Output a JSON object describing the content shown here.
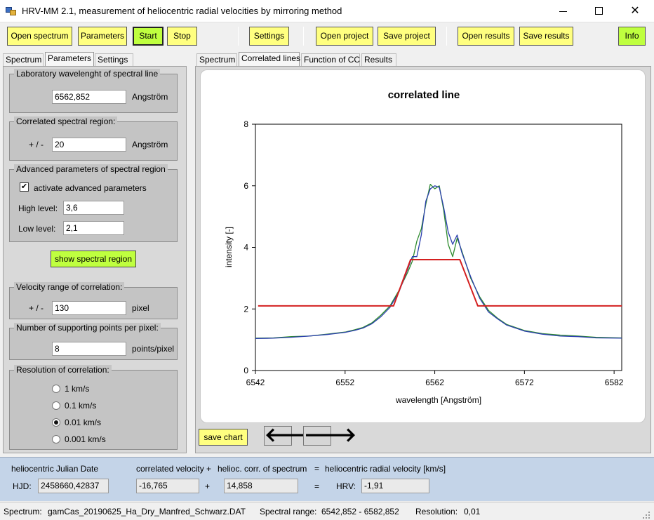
{
  "window": {
    "title": "HRV-MM 2.1,   measurement of heliocentric radial velocities by mirroring method",
    "min_glyph": "",
    "close_glyph": "✕"
  },
  "toolbar": {
    "open_spectrum": "Open spectrum",
    "parameters": "Parameters",
    "start": "Start",
    "stop": "Stop",
    "settings": "Settings",
    "open_project": "Open project",
    "save_project": "Save project",
    "open_results": "Open results",
    "save_results": "Save results",
    "info": "Info"
  },
  "left_tabs": [
    "Spectrum",
    "Parameters",
    "Settings"
  ],
  "right_tabs": [
    "Spectrum",
    "Correlated lines",
    "Function of CC",
    "Results"
  ],
  "parameters": {
    "lab_wavelength": {
      "title": "Laboratory wavelenght of spectral line",
      "value": "6562,852",
      "unit": "Angström"
    },
    "correlated_region": {
      "title": "Correlated spectral region:",
      "prefix": "+ / -",
      "value": "20",
      "unit": "Angström"
    },
    "advanced": {
      "title": "Advanced parameters of spectral region",
      "checkbox_label": "activate advanced parameters",
      "checked_glyph": "✔",
      "high_label": "High level:",
      "high_value": "3,6",
      "low_label": "Low level:",
      "low_value": "2,1"
    },
    "show_region_button": "show spectral region",
    "velocity_range": {
      "title": "Velocity range of correlation:",
      "prefix": "+ / -",
      "value": "130",
      "unit": "pixel"
    },
    "supporting_points": {
      "title": "Number of supporting points per pixel:",
      "value": "8",
      "unit": "points/pixel"
    },
    "resolution": {
      "title": "Resolution of correlation:",
      "options": [
        "1 km/s",
        "0.1 km/s",
        "0.01 km/s",
        "0.001 km/s"
      ],
      "selected_index": 2
    }
  },
  "chart_actions": {
    "save_chart": "save chart",
    "back_arrow": "🡐",
    "forward_arrow": "🡒"
  },
  "results": {
    "hjd_header": "heliocentric Julian Date",
    "velocity_header": "correlated velocity",
    "plus1": "+",
    "helio_header": "helioc. corr. of spectrum",
    "equals1": "=",
    "hrv_header": "heliocentric radial velocity [km/s]",
    "hjd_label": "HJD:",
    "hjd_value": "2458660,42837",
    "velocity_value": "-16,765",
    "plus2": "+",
    "helio_value": "14,858",
    "equals2": "=",
    "hrv_label": "HRV:",
    "hrv_value": "-1,91"
  },
  "status": {
    "spectrum_label": "Spectrum:",
    "spectrum_file": "gamCas_20190625_Ha_Dry_Manfred_Schwarz.DAT",
    "range_label": "Spectral range:",
    "range_value": "6542,852 - 6582,852",
    "resolution_label": "Resolution:",
    "resolution_value": "0,01"
  },
  "chart_data": {
    "type": "line",
    "title": "correlated line",
    "xlabel": "wavelength [Angström]",
    "ylabel": "intensity [-]",
    "xlim": [
      6542,
      6582.85
    ],
    "ylim": [
      0,
      8
    ],
    "xticks": [
      6542,
      6552,
      6562,
      6572,
      6582
    ],
    "yticks": [
      0,
      2,
      4,
      6,
      8
    ],
    "grid": false,
    "series": [
      {
        "color": "#2e8b2e",
        "x": [
          6542,
          6544,
          6546,
          6548,
          6550,
          6552,
          6553,
          6554,
          6555,
          6556,
          6557,
          6558,
          6559,
          6559.5,
          6560,
          6560.5,
          6561,
          6561.5,
          6562,
          6562.5,
          6563,
          6563.5,
          6564,
          6564.5,
          6565,
          6566,
          6567,
          6568,
          6569,
          6570,
          6572,
          6574,
          6576,
          6578,
          6580,
          6582.85
        ],
        "y": [
          1.05,
          1.06,
          1.1,
          1.12,
          1.18,
          1.25,
          1.32,
          1.4,
          1.55,
          1.8,
          2.1,
          2.6,
          3.2,
          3.55,
          4.2,
          4.6,
          5.4,
          6.05,
          5.9,
          6.0,
          5.2,
          4.1,
          3.7,
          4.3,
          3.9,
          3.0,
          2.4,
          1.95,
          1.7,
          1.5,
          1.3,
          1.2,
          1.15,
          1.12,
          1.08,
          1.06
        ]
      },
      {
        "color": "#2b3fae",
        "x": [
          6542,
          6544,
          6546,
          6548,
          6550,
          6552,
          6553,
          6554,
          6555,
          6556,
          6557,
          6558,
          6559,
          6559.5,
          6560,
          6560.5,
          6561,
          6561.5,
          6562,
          6562.5,
          6563,
          6563.5,
          6564,
          6564.5,
          6565,
          6566,
          6567,
          6568,
          6569,
          6570,
          6572,
          6574,
          6576,
          6578,
          6580,
          6582.85
        ],
        "y": [
          1.04,
          1.05,
          1.08,
          1.12,
          1.17,
          1.24,
          1.3,
          1.38,
          1.52,
          1.75,
          2.05,
          2.55,
          3.3,
          3.7,
          3.7,
          4.4,
          5.5,
          5.9,
          6.0,
          5.95,
          5.3,
          4.5,
          4.1,
          4.4,
          3.85,
          3.05,
          2.35,
          1.9,
          1.68,
          1.48,
          1.28,
          1.18,
          1.12,
          1.1,
          1.06,
          1.05
        ]
      },
      {
        "color": "#d42020",
        "x": [
          6542.3,
          6557.4,
          6559.3,
          6564.8,
          6566.8,
          6582.85
        ],
        "y": [
          2.1,
          2.1,
          3.6,
          3.6,
          2.1,
          2.1
        ]
      }
    ]
  }
}
